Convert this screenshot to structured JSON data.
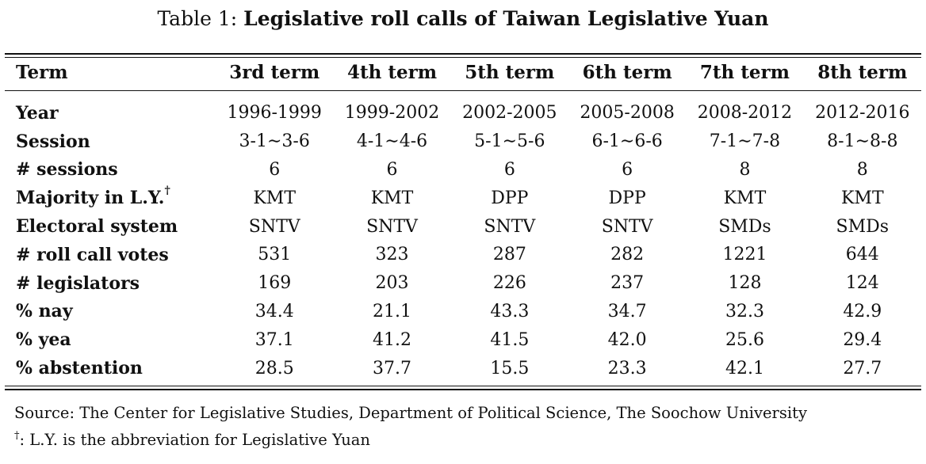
{
  "caption": {
    "label": "Table 1:",
    "title": "Legislative roll calls of Taiwan Legislative Yuan"
  },
  "table": {
    "header": [
      "Term",
      "3rd term",
      "4th term",
      "5th term",
      "6th term",
      "7th term",
      "8th term"
    ],
    "rows": [
      {
        "label": "Year",
        "values": [
          "1996-1999",
          "1999-2002",
          "2002-2005",
          "2005-2008",
          "2008-2012",
          "2012-2016"
        ]
      },
      {
        "label": "Session",
        "values": [
          "3-1∼3-6",
          "4-1∼4-6",
          "5-1∼5-6",
          "6-1∼6-6",
          "7-1∼7-8",
          "8-1∼8-8"
        ]
      },
      {
        "label": "# sessions",
        "values": [
          "6",
          "6",
          "6",
          "6",
          "8",
          "8"
        ]
      },
      {
        "label": "Majority in L.Y.",
        "label_mark": "†",
        "values": [
          "KMT",
          "KMT",
          "DPP",
          "DPP",
          "KMT",
          "KMT"
        ]
      },
      {
        "label": "Electoral system",
        "values": [
          "SNTV",
          "SNTV",
          "SNTV",
          "SNTV",
          "SMDs",
          "SMDs"
        ]
      },
      {
        "label": "# roll call votes",
        "values": [
          "531",
          "323",
          "287",
          "282",
          "1221",
          "644"
        ]
      },
      {
        "label": "# legislators",
        "values": [
          "169",
          "203",
          "226",
          "237",
          "128",
          "124"
        ]
      },
      {
        "label": "% nay",
        "values": [
          "34.4",
          "21.1",
          "43.3",
          "34.7",
          "32.3",
          "42.9"
        ]
      },
      {
        "label": "% yea",
        "values": [
          "37.1",
          "41.2",
          "41.5",
          "42.0",
          "25.6",
          "29.4"
        ]
      },
      {
        "label": "% abstention",
        "values": [
          "28.5",
          "37.7",
          "15.5",
          "23.3",
          "42.1",
          "27.7"
        ]
      }
    ]
  },
  "notes": {
    "source": "Source: The Center for Legislative Studies, Department of Political Science, The Soochow University",
    "footnote_mark": "†",
    "footnote_text": ": L.Y. is the abbreviation for Legislative Yuan"
  }
}
